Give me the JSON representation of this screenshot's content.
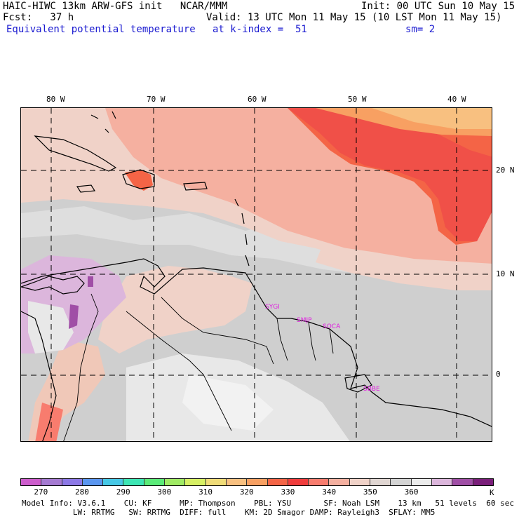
{
  "header": {
    "line1_left": "HAIC-HIWC 13km ARW-GFS init   NCAR/MMM",
    "line1_right": "Init: 00 UTC Sun 10 May 15",
    "line2_left": "Fcst:   37 h",
    "line2_right": "Valid: 13 UTC Mon 11 May 15 (10 LST Mon 11 May 15)",
    "line3_field": "Equivalent potential temperature",
    "line3_level": "at k-index =  51",
    "line3_smooth": "sm= 2"
  },
  "map": {
    "lon_labels": [
      "80 W",
      "70 W",
      "60 W",
      "50 W",
      "40 W"
    ],
    "lat_labels": [
      "20 N",
      "10 N",
      "0"
    ],
    "sites": [
      "SYGI",
      "SMJP",
      "SOCA",
      "SBBE"
    ],
    "colors": {
      "background": "#cfcfcf",
      "ocean_warm": "#f5b8a4",
      "band_red": "#f86a58",
      "band_orange": "#f89a6a",
      "band_yellow": "#f8c88a",
      "purple_light": "#dcb6dc",
      "purple_dark": "#a05ab4",
      "coast": "#000000"
    }
  },
  "colorbar": {
    "colors": [
      "#cd5ccd",
      "#a57ad2",
      "#8c78e6",
      "#5a96f0",
      "#46c8e6",
      "#3ce6b4",
      "#5aeb78",
      "#a0eb64",
      "#d7f064",
      "#f0dc78",
      "#f8c080",
      "#f8a062",
      "#f46446",
      "#f03c3c",
      "#f87c6e",
      "#f5b0a0",
      "#f0d2c8",
      "#e0d6d2",
      "#d4d4d4",
      "#ebebeb",
      "#dcb6dc",
      "#a04ea6",
      "#7a1e7a"
    ],
    "ticks": [
      "270",
      "280",
      "290",
      "300",
      "310",
      "320",
      "330",
      "340",
      "350",
      "360"
    ],
    "unit": "K"
  },
  "footer": {
    "line1": "Model Info: V3.6.1    CU: KF      MP: Thompson    PBL: YSU       SF: Noah LSM    13 km   51 levels  60 sec",
    "line2": "           LW: RRTMG   SW: RRTMG  DIFF: full    KM: 2D Smagor DAMP: Rayleigh3  SFLAY: MM5"
  }
}
